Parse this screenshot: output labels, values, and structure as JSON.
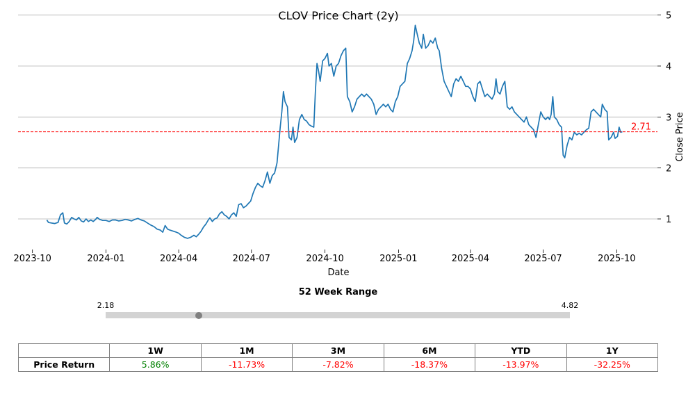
{
  "chart_data": {
    "type": "line",
    "title": "CLOV Price Chart (2y)",
    "xlabel": "Date",
    "ylabel": "Close Price",
    "x_tick_labels": [
      "2023-10",
      "2024-01",
      "2024-04",
      "2024-07",
      "2024-10",
      "2025-01",
      "2025-04",
      "2025-07",
      "2025-10"
    ],
    "x_tick_days": [
      0,
      92,
      183,
      274,
      366,
      458,
      548,
      639,
      731
    ],
    "y_ticks": [
      1,
      2,
      3,
      4,
      5
    ],
    "ylim": [
      0.4,
      5.05
    ],
    "xlim_days": [
      -18,
      782
    ],
    "grid": "horizontal",
    "reference_line": {
      "value": 2.71,
      "label": "2.71",
      "color": "#ff0000"
    },
    "line_color": "#1f77b4",
    "series": [
      {
        "name": "CLOV",
        "points": [
          [
            18,
            0.98
          ],
          [
            20,
            0.93
          ],
          [
            24,
            0.92
          ],
          [
            28,
            0.91
          ],
          [
            32,
            0.93
          ],
          [
            35,
            1.08
          ],
          [
            38,
            1.12
          ],
          [
            40,
            0.92
          ],
          [
            43,
            0.9
          ],
          [
            46,
            0.95
          ],
          [
            49,
            1.03
          ],
          [
            52,
            1.0
          ],
          [
            55,
            0.98
          ],
          [
            58,
            1.03
          ],
          [
            61,
            0.96
          ],
          [
            64,
            0.94
          ],
          [
            67,
            1.0
          ],
          [
            70,
            0.95
          ],
          [
            73,
            0.98
          ],
          [
            76,
            0.95
          ],
          [
            79,
            0.99
          ],
          [
            81,
            1.03
          ],
          [
            84,
            0.99
          ],
          [
            88,
            0.97
          ],
          [
            92,
            0.97
          ],
          [
            96,
            0.95
          ],
          [
            100,
            0.98
          ],
          [
            104,
            0.98
          ],
          [
            108,
            0.96
          ],
          [
            112,
            0.97
          ],
          [
            116,
            0.99
          ],
          [
            120,
            0.98
          ],
          [
            124,
            0.96
          ],
          [
            128,
            0.99
          ],
          [
            132,
            1.01
          ],
          [
            136,
            0.98
          ],
          [
            140,
            0.96
          ],
          [
            144,
            0.92
          ],
          [
            148,
            0.88
          ],
          [
            152,
            0.85
          ],
          [
            156,
            0.8
          ],
          [
            160,
            0.78
          ],
          [
            163,
            0.74
          ],
          [
            166,
            0.87
          ],
          [
            169,
            0.8
          ],
          [
            172,
            0.78
          ],
          [
            176,
            0.76
          ],
          [
            180,
            0.74
          ],
          [
            183,
            0.72
          ],
          [
            186,
            0.68
          ],
          [
            190,
            0.64
          ],
          [
            194,
            0.62
          ],
          [
            198,
            0.64
          ],
          [
            202,
            0.68
          ],
          [
            205,
            0.65
          ],
          [
            208,
            0.7
          ],
          [
            211,
            0.76
          ],
          [
            214,
            0.84
          ],
          [
            217,
            0.9
          ],
          [
            220,
            0.98
          ],
          [
            222,
            1.02
          ],
          [
            225,
            0.95
          ],
          [
            228,
            1.0
          ],
          [
            231,
            1.02
          ],
          [
            234,
            1.1
          ],
          [
            237,
            1.14
          ],
          [
            240,
            1.08
          ],
          [
            243,
            1.05
          ],
          [
            246,
            1.0
          ],
          [
            249,
            1.08
          ],
          [
            252,
            1.12
          ],
          [
            255,
            1.05
          ],
          [
            258,
            1.28
          ],
          [
            261,
            1.3
          ],
          [
            264,
            1.22
          ],
          [
            267,
            1.25
          ],
          [
            270,
            1.3
          ],
          [
            273,
            1.35
          ],
          [
            276,
            1.5
          ],
          [
            279,
            1.62
          ],
          [
            282,
            1.7
          ],
          [
            285,
            1.65
          ],
          [
            288,
            1.62
          ],
          [
            291,
            1.75
          ],
          [
            294,
            1.92
          ],
          [
            297,
            1.7
          ],
          [
            300,
            1.85
          ],
          [
            303,
            1.9
          ],
          [
            306,
            2.1
          ],
          [
            308,
            2.45
          ],
          [
            310,
            2.8
          ],
          [
            312,
            3.1
          ],
          [
            314,
            3.5
          ],
          [
            316,
            3.3
          ],
          [
            319,
            3.2
          ],
          [
            321,
            2.6
          ],
          [
            324,
            2.55
          ],
          [
            326,
            2.8
          ],
          [
            328,
            2.5
          ],
          [
            331,
            2.6
          ],
          [
            334,
            2.95
          ],
          [
            337,
            3.05
          ],
          [
            340,
            2.95
          ],
          [
            343,
            2.92
          ],
          [
            346,
            2.85
          ],
          [
            349,
            2.82
          ],
          [
            352,
            2.8
          ],
          [
            354,
            3.5
          ],
          [
            356,
            4.05
          ],
          [
            358,
            3.9
          ],
          [
            360,
            3.7
          ],
          [
            363,
            4.1
          ],
          [
            366,
            4.15
          ],
          [
            369,
            4.25
          ],
          [
            371,
            4.0
          ],
          [
            374,
            4.05
          ],
          [
            377,
            3.8
          ],
          [
            380,
            4.0
          ],
          [
            383,
            4.05
          ],
          [
            386,
            4.2
          ],
          [
            389,
            4.3
          ],
          [
            392,
            4.35
          ],
          [
            394,
            3.4
          ],
          [
            397,
            3.3
          ],
          [
            400,
            3.1
          ],
          [
            403,
            3.2
          ],
          [
            406,
            3.35
          ],
          [
            409,
            3.4
          ],
          [
            412,
            3.45
          ],
          [
            415,
            3.4
          ],
          [
            418,
            3.45
          ],
          [
            421,
            3.4
          ],
          [
            424,
            3.35
          ],
          [
            427,
            3.25
          ],
          [
            430,
            3.05
          ],
          [
            433,
            3.15
          ],
          [
            436,
            3.2
          ],
          [
            439,
            3.25
          ],
          [
            442,
            3.2
          ],
          [
            445,
            3.25
          ],
          [
            448,
            3.15
          ],
          [
            451,
            3.1
          ],
          [
            454,
            3.3
          ],
          [
            457,
            3.4
          ],
          [
            460,
            3.6
          ],
          [
            463,
            3.65
          ],
          [
            466,
            3.7
          ],
          [
            469,
            4.05
          ],
          [
            472,
            4.15
          ],
          [
            475,
            4.3
          ],
          [
            477,
            4.5
          ],
          [
            479,
            4.8
          ],
          [
            481,
            4.65
          ],
          [
            484,
            4.45
          ],
          [
            487,
            4.35
          ],
          [
            489,
            4.62
          ],
          [
            492,
            4.35
          ],
          [
            495,
            4.4
          ],
          [
            498,
            4.5
          ],
          [
            501,
            4.45
          ],
          [
            504,
            4.55
          ],
          [
            507,
            4.35
          ],
          [
            509,
            4.3
          ],
          [
            512,
            3.95
          ],
          [
            515,
            3.7
          ],
          [
            518,
            3.6
          ],
          [
            521,
            3.5
          ],
          [
            524,
            3.4
          ],
          [
            527,
            3.65
          ],
          [
            530,
            3.75
          ],
          [
            533,
            3.7
          ],
          [
            536,
            3.8
          ],
          [
            539,
            3.7
          ],
          [
            542,
            3.6
          ],
          [
            545,
            3.6
          ],
          [
            548,
            3.55
          ],
          [
            551,
            3.4
          ],
          [
            554,
            3.3
          ],
          [
            557,
            3.65
          ],
          [
            560,
            3.7
          ],
          [
            563,
            3.55
          ],
          [
            566,
            3.4
          ],
          [
            569,
            3.45
          ],
          [
            572,
            3.4
          ],
          [
            575,
            3.35
          ],
          [
            578,
            3.45
          ],
          [
            580,
            3.75
          ],
          [
            582,
            3.5
          ],
          [
            585,
            3.45
          ],
          [
            588,
            3.6
          ],
          [
            591,
            3.7
          ],
          [
            594,
            3.2
          ],
          [
            597,
            3.15
          ],
          [
            600,
            3.2
          ],
          [
            603,
            3.1
          ],
          [
            606,
            3.05
          ],
          [
            609,
            3.0
          ],
          [
            612,
            2.95
          ],
          [
            615,
            2.9
          ],
          [
            618,
            3.0
          ],
          [
            621,
            2.85
          ],
          [
            624,
            2.8
          ],
          [
            627,
            2.75
          ],
          [
            630,
            2.6
          ],
          [
            633,
            2.85
          ],
          [
            636,
            3.1
          ],
          [
            639,
            3.0
          ],
          [
            642,
            2.95
          ],
          [
            645,
            3.0
          ],
          [
            647,
            2.95
          ],
          [
            649,
            3.05
          ],
          [
            651,
            3.4
          ],
          [
            653,
            3.0
          ],
          [
            656,
            2.95
          ],
          [
            659,
            2.85
          ],
          [
            662,
            2.8
          ],
          [
            664,
            2.25
          ],
          [
            666,
            2.2
          ],
          [
            669,
            2.45
          ],
          [
            672,
            2.6
          ],
          [
            675,
            2.55
          ],
          [
            678,
            2.7
          ],
          [
            681,
            2.65
          ],
          [
            684,
            2.68
          ],
          [
            687,
            2.65
          ],
          [
            690,
            2.7
          ],
          [
            693,
            2.75
          ],
          [
            696,
            2.78
          ],
          [
            699,
            3.1
          ],
          [
            702,
            3.15
          ],
          [
            705,
            3.1
          ],
          [
            708,
            3.05
          ],
          [
            711,
            3.0
          ],
          [
            713,
            3.25
          ],
          [
            716,
            3.15
          ],
          [
            719,
            3.1
          ],
          [
            721,
            2.55
          ],
          [
            724,
            2.6
          ],
          [
            727,
            2.7
          ],
          [
            729,
            2.58
          ],
          [
            732,
            2.62
          ],
          [
            734,
            2.8
          ],
          [
            736,
            2.7
          ],
          [
            738,
            2.71
          ]
        ]
      }
    ]
  },
  "range": {
    "title": "52 Week Range",
    "low_label": "2.18",
    "high_label": "4.82",
    "low": 2.18,
    "high": 4.82,
    "current": 2.71
  },
  "returns": {
    "corner": "",
    "row_label": "Price Return",
    "headers": [
      "1W",
      "1M",
      "3M",
      "6M",
      "YTD",
      "1Y"
    ],
    "values": [
      "5.86%",
      "-11.73%",
      "-7.82%",
      "-18.37%",
      "-13.97%",
      "-32.25%"
    ],
    "colors": [
      "#008000",
      "#ff0000",
      "#ff0000",
      "#ff0000",
      "#ff0000",
      "#ff0000"
    ]
  }
}
